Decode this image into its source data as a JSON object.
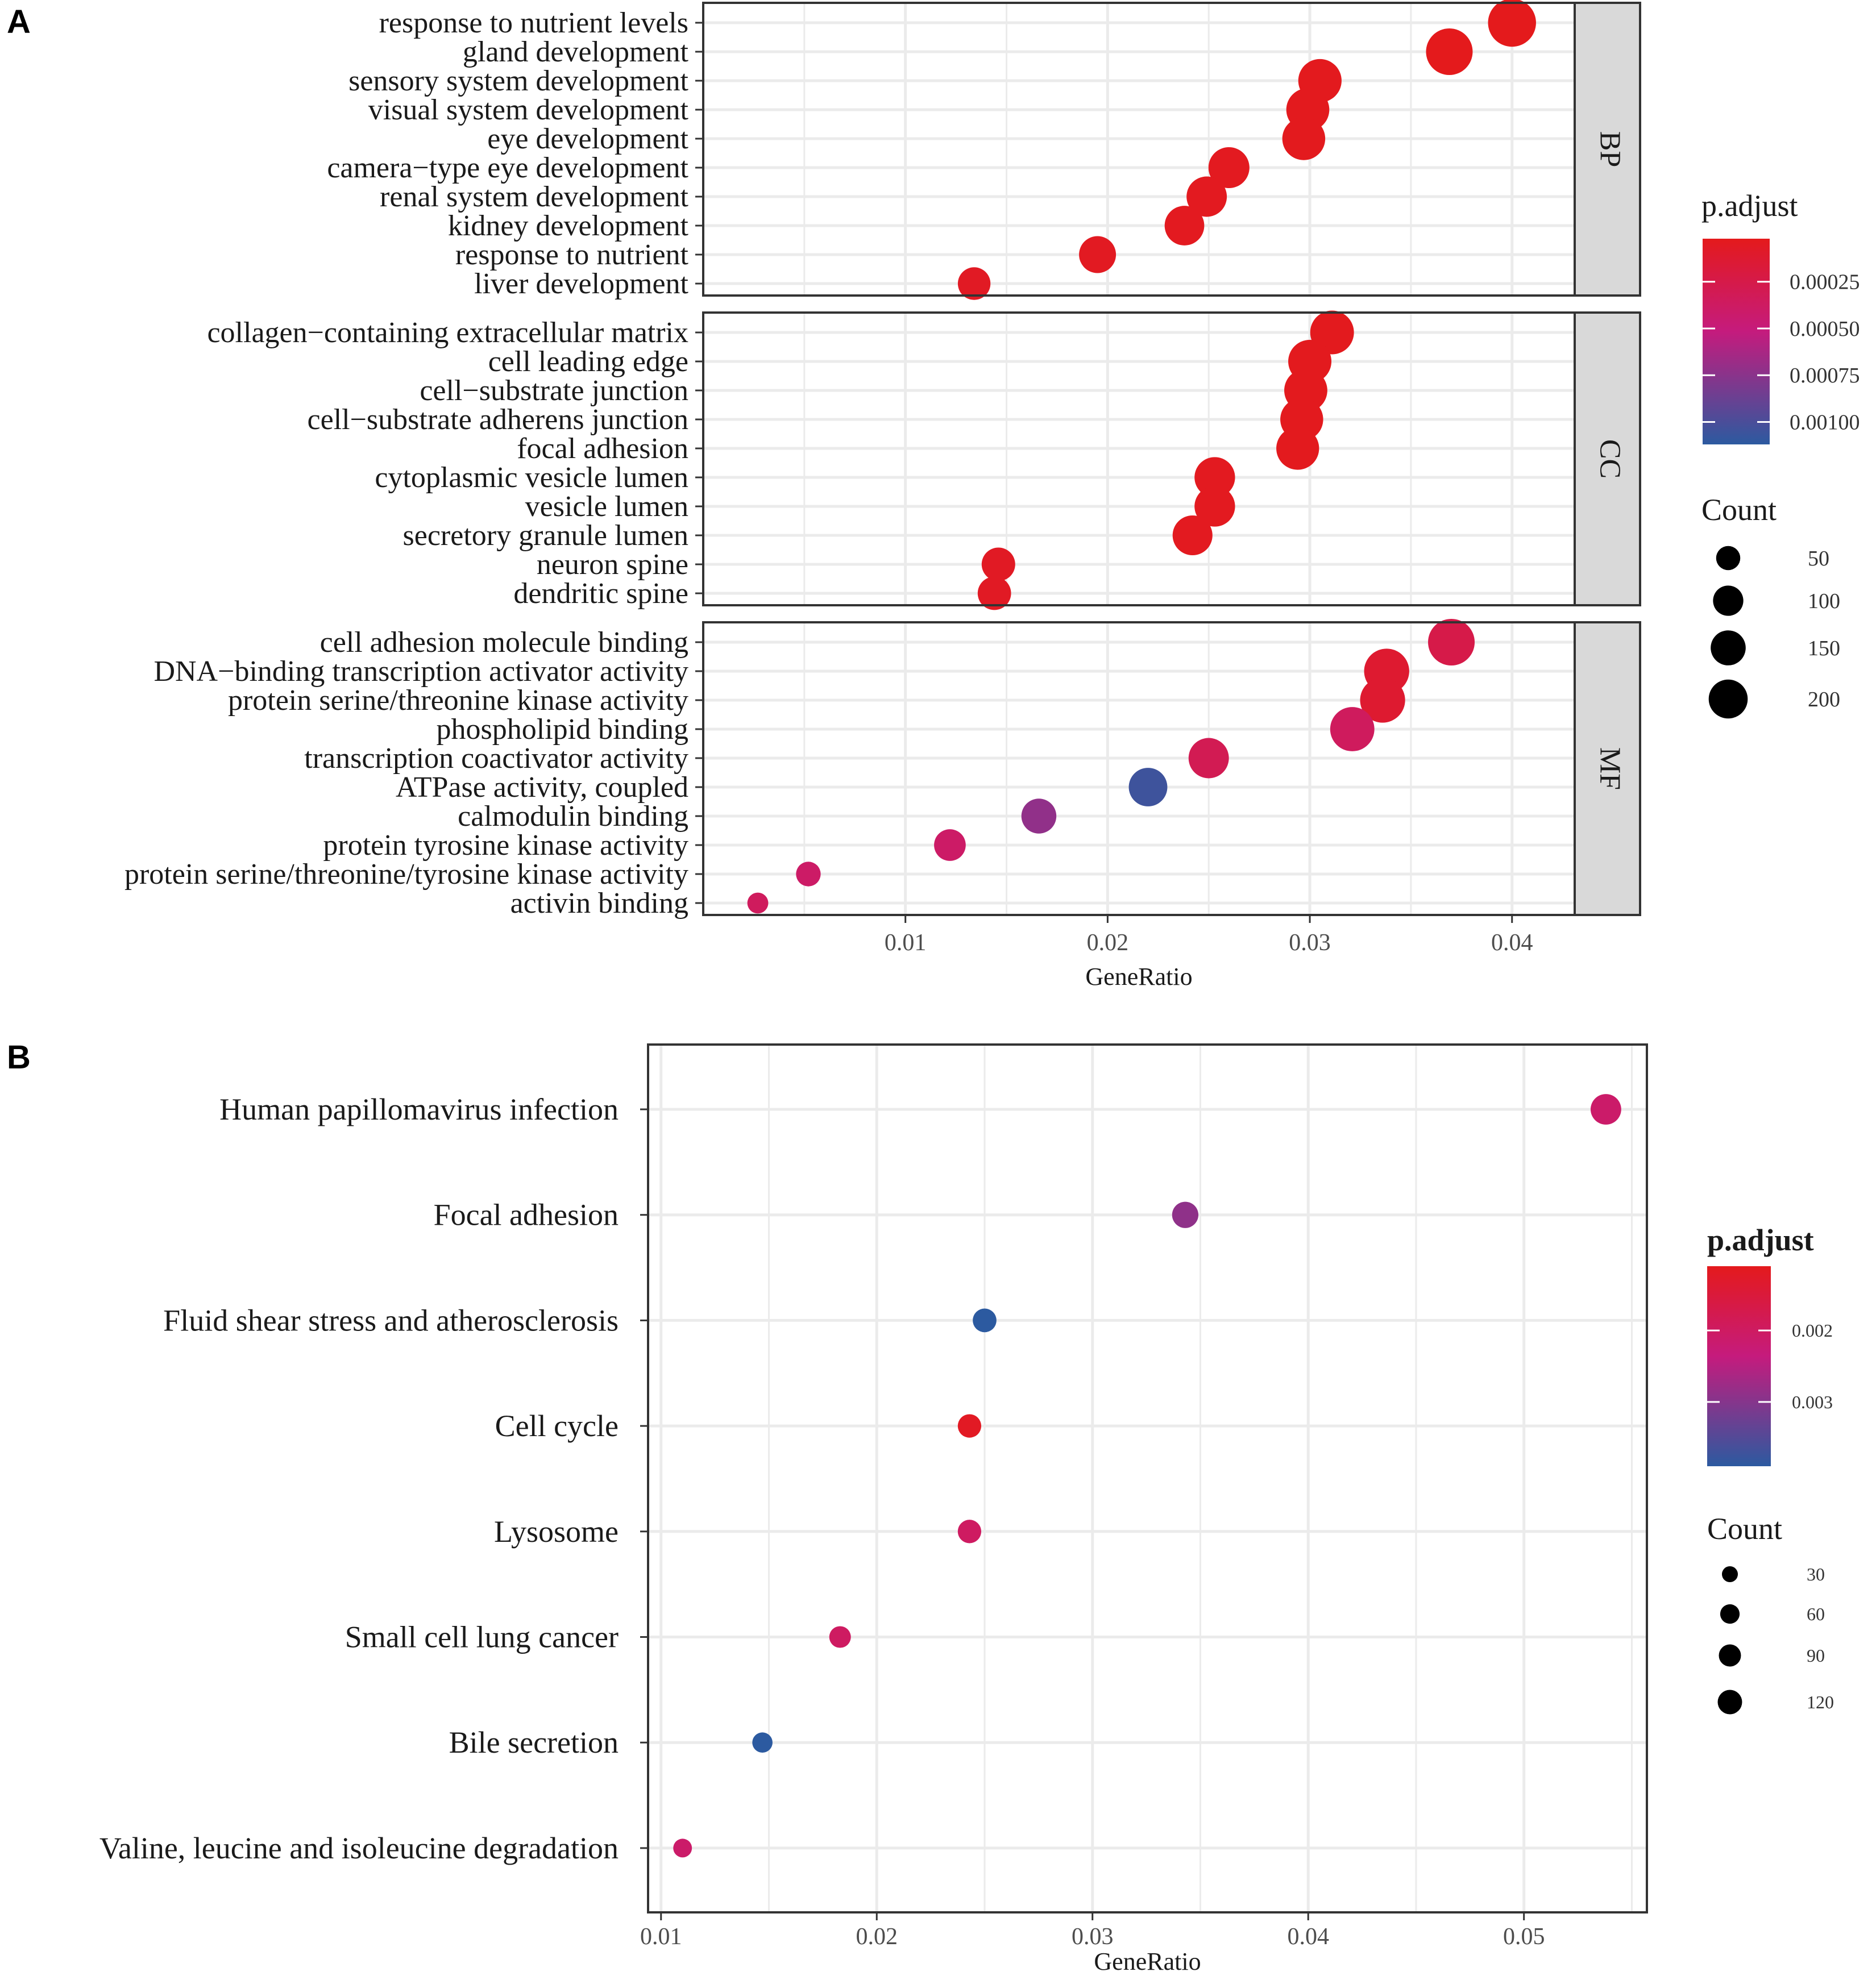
{
  "panels": {
    "a_label": "A",
    "b_label": "B"
  },
  "chart_data": [
    {
      "type": "scatter",
      "panel": "A",
      "xlabel": "GeneRatio",
      "xlim": [
        0,
        0.0431
      ],
      "xticks": [
        0.01,
        0.02,
        0.03,
        0.04
      ],
      "xtick_labels": [
        "0.01",
        "0.02",
        "0.03",
        "0.04"
      ],
      "color_legend": {
        "title": "p.adjust",
        "ticks": [
          0.00025,
          0.0005,
          0.00075,
          0.001
        ],
        "tick_labels": [
          "0.00025",
          "0.00050",
          "0.00075",
          "0.00100"
        ],
        "range": [
          2e-05,
          0.00112
        ],
        "low_color": "#e41a1c",
        "mid_color": "#c51b7d",
        "high_color": "#2c5aa0"
      },
      "size_legend": {
        "title": "Count",
        "values": [
          50,
          100,
          150,
          200
        ],
        "labels": [
          "50",
          "100",
          "150",
          "200"
        ]
      },
      "facets": [
        {
          "name": "BP",
          "terms": [
            {
              "label": "response to nutrient levels",
              "gene_ratio": 0.04,
              "p_adjust": 2e-05,
              "count": 205
            },
            {
              "label": "gland development",
              "gene_ratio": 0.0369,
              "p_adjust": 2e-05,
              "count": 190
            },
            {
              "label": "sensory system development",
              "gene_ratio": 0.0305,
              "p_adjust": 3e-05,
              "count": 156
            },
            {
              "label": "visual system development",
              "gene_ratio": 0.0299,
              "p_adjust": 3e-05,
              "count": 153
            },
            {
              "label": "eye development",
              "gene_ratio": 0.0297,
              "p_adjust": 3e-05,
              "count": 152
            },
            {
              "label": "camera−type eye development",
              "gene_ratio": 0.026,
              "p_adjust": 4e-05,
              "count": 134
            },
            {
              "label": "renal system development",
              "gene_ratio": 0.0249,
              "p_adjust": 4e-05,
              "count": 128
            },
            {
              "label": "kidney development",
              "gene_ratio": 0.0238,
              "p_adjust": 4e-05,
              "count": 122
            },
            {
              "label": "response to nutrient",
              "gene_ratio": 0.0195,
              "p_adjust": 5e-05,
              "count": 100
            },
            {
              "label": "liver development",
              "gene_ratio": 0.0134,
              "p_adjust": 6e-05,
              "count": 69
            }
          ]
        },
        {
          "name": "CC",
          "terms": [
            {
              "label": "collagen−containing extracellular matrix",
              "gene_ratio": 0.0311,
              "p_adjust": 3e-05,
              "count": 160
            },
            {
              "label": "cell leading edge",
              "gene_ratio": 0.03,
              "p_adjust": 3e-05,
              "count": 155
            },
            {
              "label": "cell−substrate junction",
              "gene_ratio": 0.0298,
              "p_adjust": 3e-05,
              "count": 154
            },
            {
              "label": "cell−substrate adherens junction",
              "gene_ratio": 0.0296,
              "p_adjust": 3e-05,
              "count": 152
            },
            {
              "label": "focal adhesion",
              "gene_ratio": 0.0294,
              "p_adjust": 3e-05,
              "count": 151
            },
            {
              "label": "cytoplasmic vesicle lumen",
              "gene_ratio": 0.0253,
              "p_adjust": 4e-05,
              "count": 130
            },
            {
              "label": "vesicle lumen",
              "gene_ratio": 0.0253,
              "p_adjust": 4e-05,
              "count": 130
            },
            {
              "label": "secretory granule lumen",
              "gene_ratio": 0.0242,
              "p_adjust": 4e-05,
              "count": 124
            },
            {
              "label": "neuron spine",
              "gene_ratio": 0.0146,
              "p_adjust": 6e-05,
              "count": 75
            },
            {
              "label": "dendritic spine",
              "gene_ratio": 0.0144,
              "p_adjust": 6e-05,
              "count": 74
            }
          ]
        },
        {
          "name": "MF",
          "terms": [
            {
              "label": "cell adhesion molecule binding",
              "gene_ratio": 0.037,
              "p_adjust": 0.00025,
              "count": 190
            },
            {
              "label": "DNA−binding transcription activator activity",
              "gene_ratio": 0.0338,
              "p_adjust": 0.00012,
              "count": 174
            },
            {
              "label": "protein serine/threonine kinase activity",
              "gene_ratio": 0.0336,
              "p_adjust": 0.00012,
              "count": 173
            },
            {
              "label": "phospholipid binding",
              "gene_ratio": 0.0321,
              "p_adjust": 0.00035,
              "count": 165
            },
            {
              "label": "transcription coactivator activity",
              "gene_ratio": 0.025,
              "p_adjust": 0.0003,
              "count": 128
            },
            {
              "label": "ATPase activity, coupled",
              "gene_ratio": 0.022,
              "p_adjust": 0.00105,
              "count": 113
            },
            {
              "label": "calmodulin binding",
              "gene_ratio": 0.0166,
              "p_adjust": 0.00072,
              "count": 85
            },
            {
              "label": "protein tyrosine kinase activity",
              "gene_ratio": 0.0122,
              "p_adjust": 0.0004,
              "count": 63
            },
            {
              "label": "protein serine/threonine/tyrosine kinase activity",
              "gene_ratio": 0.0052,
              "p_adjust": 0.0004,
              "count": 27
            },
            {
              "label": "activin binding",
              "gene_ratio": 0.0027,
              "p_adjust": 0.00035,
              "count": 14
            }
          ]
        }
      ]
    },
    {
      "type": "scatter",
      "panel": "B",
      "xlabel": "GeneRatio",
      "xlim": [
        0.0094,
        0.0557
      ],
      "xticks": [
        0.01,
        0.02,
        0.03,
        0.04,
        0.05
      ],
      "xtick_labels": [
        "0.01",
        "0.02",
        "0.03",
        "0.04",
        "0.05"
      ],
      "color_legend": {
        "title": "p.adjust",
        "ticks": [
          0.002,
          0.003
        ],
        "tick_labels": [
          "0.002",
          "0.003"
        ],
        "range": [
          0.0011,
          0.0039
        ],
        "low_color": "#e41a1c",
        "mid_color": "#c51b7d",
        "high_color": "#2c5aa0"
      },
      "size_legend": {
        "title": "Count",
        "values": [
          30,
          60,
          90,
          120
        ],
        "labels": [
          "30",
          "60",
          "90",
          "120"
        ]
      },
      "terms": [
        {
          "label": "Human papillomavirus infection",
          "gene_ratio": 0.0538,
          "p_adjust": 0.0021,
          "count": 130
        },
        {
          "label": "Focal adhesion",
          "gene_ratio": 0.0343,
          "p_adjust": 0.0029,
          "count": 83
        },
        {
          "label": "Fluid shear stress and atherosclerosis",
          "gene_ratio": 0.025,
          "p_adjust": 0.0039,
          "count": 60
        },
        {
          "label": "Cell cycle",
          "gene_ratio": 0.0243,
          "p_adjust": 0.0012,
          "count": 58
        },
        {
          "label": "Lysosome",
          "gene_ratio": 0.0243,
          "p_adjust": 0.002,
          "count": 58
        },
        {
          "label": "Small cell lung cancer",
          "gene_ratio": 0.0183,
          "p_adjust": 0.002,
          "count": 44
        },
        {
          "label": "Bile secretion",
          "gene_ratio": 0.0147,
          "p_adjust": 0.0039,
          "count": 35
        },
        {
          "label": "Valine, leucine and isoleucine degradation",
          "gene_ratio": 0.011,
          "p_adjust": 0.0021,
          "count": 26
        }
      ]
    }
  ]
}
